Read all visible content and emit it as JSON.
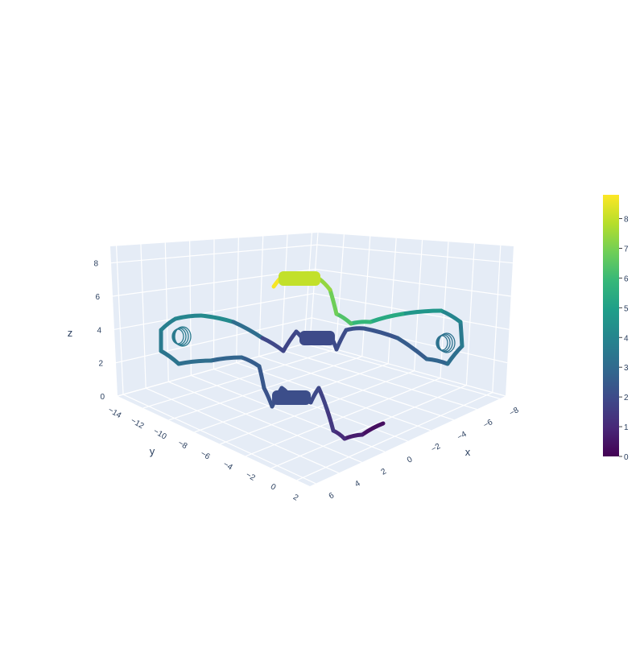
{
  "chart_data": {
    "type": "3d-ribbon",
    "title": "",
    "xlabel": "x",
    "ylabel": "y",
    "zlabel": "z",
    "x_ticks": [
      -8,
      -6,
      -4,
      -2,
      0,
      2,
      4,
      6
    ],
    "y_ticks": [
      -14,
      -12,
      -10,
      -8,
      -6,
      -4,
      -2,
      0,
      2
    ],
    "z_ticks": [
      0,
      2,
      4,
      6,
      8
    ],
    "xlim": [
      -8,
      7
    ],
    "ylim": [
      -14.5,
      2.5
    ],
    "zlim": [
      0,
      9
    ],
    "colorbar": {
      "colorscale": "Viridis",
      "range": [
        0,
        8.8
      ],
      "ticks": [
        0,
        1,
        2,
        3,
        4,
        5,
        6,
        7,
        8
      ]
    },
    "grid": true,
    "colors": {
      "pane": "#e5ecf6",
      "grid": "#ffffff",
      "text": "#2a3f5f"
    }
  }
}
